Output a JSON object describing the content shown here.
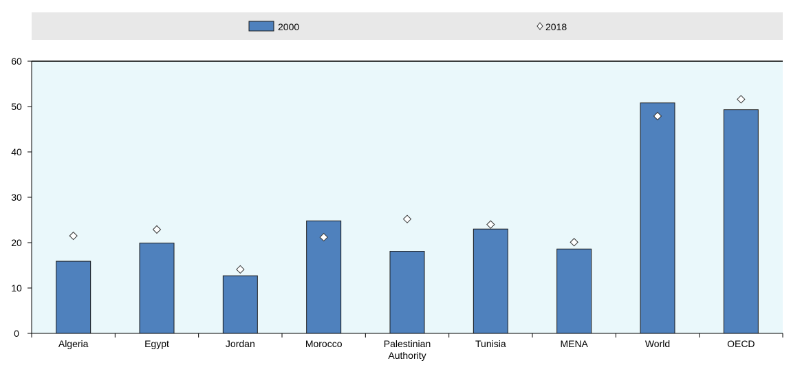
{
  "chart_data": {
    "type": "bar",
    "categories": [
      [
        "Algeria"
      ],
      [
        "Egypt"
      ],
      [
        "Jordan"
      ],
      [
        "Morocco"
      ],
      [
        "Palestinian",
        "Authority"
      ],
      [
        "Tunisia"
      ],
      [
        "MENA"
      ],
      [
        "World"
      ],
      [
        "OECD"
      ]
    ],
    "series": [
      {
        "name": "2000",
        "kind": "bar",
        "color": "#4f81bd",
        "values": [
          15.9,
          19.9,
          12.7,
          24.8,
          18.1,
          23.0,
          18.6,
          50.8,
          49.3
        ]
      },
      {
        "name": "2018",
        "kind": "marker",
        "marker": "diamond",
        "color": "#ffffff",
        "values": [
          21.5,
          22.9,
          14.1,
          21.2,
          25.2,
          24.0,
          20.1,
          47.9,
          51.6
        ]
      }
    ],
    "ylim": [
      0,
      60
    ],
    "yticks": [
      0,
      10,
      20,
      30,
      40,
      50,
      60
    ],
    "grid": false,
    "legend_position": "top",
    "plot_background": "#eaf8fb",
    "legend_background": "#e8e8e8"
  }
}
